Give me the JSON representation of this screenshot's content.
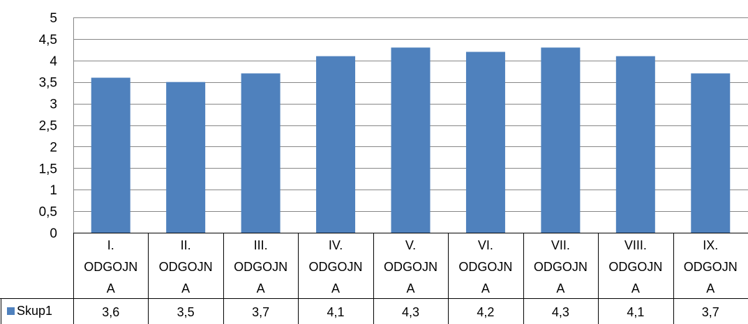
{
  "chart_data": {
    "type": "bar",
    "categories": [
      [
        "I.",
        "ODGOJN",
        "A"
      ],
      [
        "II.",
        "ODGOJN",
        "A"
      ],
      [
        "III.",
        "ODGOJN",
        "A"
      ],
      [
        "IV.",
        "ODGOJN",
        "A"
      ],
      [
        "V.",
        "ODGOJN",
        "A"
      ],
      [
        "VI.",
        "ODGOJN",
        "A"
      ],
      [
        "VII.",
        "ODGOJN",
        "A"
      ],
      [
        "VIII.",
        "ODGOJN",
        "A"
      ],
      [
        "IX.",
        "ODGOJN",
        "A"
      ]
    ],
    "series": [
      {
        "name": "Skup1",
        "values": [
          3.6,
          3.5,
          3.7,
          4.1,
          4.3,
          4.2,
          4.3,
          4.1,
          3.7
        ],
        "value_labels": [
          "3,6",
          "3,5",
          "3,7",
          "4,1",
          "4,3",
          "4,2",
          "4,3",
          "4,1",
          "3,7"
        ],
        "color": "#4f81bd"
      }
    ],
    "yticks": [
      0,
      0.5,
      1,
      1.5,
      2,
      2.5,
      3,
      3.5,
      4,
      4.5,
      5
    ],
    "ytick_labels": [
      "0",
      "0,5",
      "1",
      "1,5",
      "2",
      "2,5",
      "3",
      "3,5",
      "4",
      "4,5",
      "5"
    ],
    "ylim": [
      0,
      5
    ],
    "grid": true,
    "data_table": true,
    "title": "",
    "xlabel": "",
    "ylabel": "",
    "gridline_color": "#868686",
    "border_color": "#000000"
  }
}
